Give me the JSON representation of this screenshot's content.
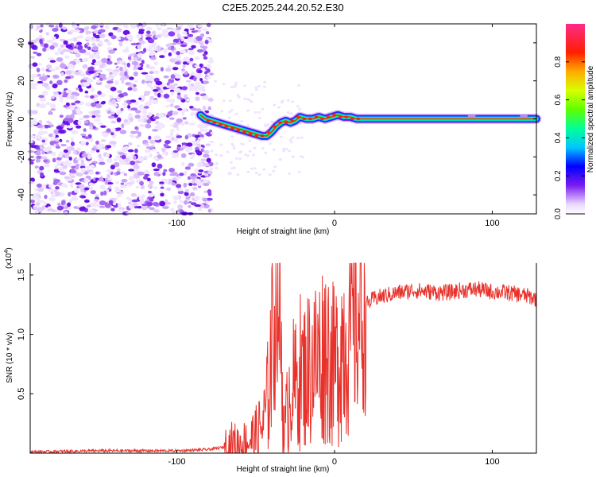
{
  "title": "C2E5.2025.244.20.52.E30",
  "chart_data": [
    {
      "type": "heatmap",
      "xlabel": "Height of straight line (km)",
      "ylabel": "Frequency (Hz)",
      "xlim": [
        -193,
        128
      ],
      "ylim": [
        -50,
        50
      ],
      "xticks": [
        -100,
        0,
        100
      ],
      "xtick_labels": [
        "-100",
        "0",
        "100"
      ],
      "yticks": [
        -40,
        -20,
        0,
        20,
        40
      ],
      "ytick_labels": [
        "-40",
        "-20",
        "0",
        "20",
        "40"
      ],
      "noise_region_km": [
        -193,
        -78
      ],
      "trace_x": [
        -85,
        -82,
        -78,
        -74,
        -70,
        -66,
        -62,
        -58,
        -54,
        -50,
        -46,
        -43,
        -40,
        -37,
        -34,
        -31,
        -28,
        -25,
        -22,
        -18,
        -14,
        -10,
        -6,
        -2,
        2,
        6,
        10,
        14,
        18,
        30,
        60,
        90,
        128
      ],
      "trace_freq": [
        2,
        0,
        -1,
        -2,
        -3,
        -4,
        -5,
        -6,
        -7,
        -8,
        -9,
        -9,
        -7,
        -4,
        -2,
        -1,
        -2,
        -1,
        1,
        0,
        0,
        1,
        0,
        1,
        2,
        1,
        1,
        0,
        0,
        0,
        0,
        0,
        0
      ],
      "colorbar": {
        "label": "Normalized spectral amplitude",
        "range": [
          0,
          1
        ],
        "ticks": [
          0.0,
          0.2,
          0.4,
          0.6,
          0.8
        ],
        "tick_labels": [
          "0.0",
          "0.2",
          "0.4",
          "0.6",
          "0.8"
        ]
      }
    },
    {
      "type": "line",
      "xlabel": "Height of straight line (km)",
      "ylabel": "SNR (10 * v/v)",
      "y_multiplier": "(x10",
      "y_multiplier_exp": "4",
      "y_multiplier_close": ")",
      "xlim": [
        -193,
        128
      ],
      "ylim": [
        0,
        1.6
      ],
      "xticks": [
        -100,
        0,
        100
      ],
      "xtick_labels": [
        "-100",
        "0",
        "100"
      ],
      "yticks": [
        0.5,
        1.0,
        1.5
      ],
      "ytick_labels": [
        "0.5",
        "1.0",
        "1.5"
      ],
      "series": [
        {
          "name": "SNR",
          "color": "#e8312b",
          "x": [
            -193,
            -150,
            -100,
            -80,
            -70,
            -65,
            -60,
            -55,
            -50,
            -45,
            -42,
            -40,
            -38,
            -36,
            -34,
            -32,
            -30,
            -28,
            -25,
            -22,
            -20,
            -15,
            -10,
            -5,
            0,
            5,
            10,
            15,
            20,
            25,
            30,
            40,
            50,
            60,
            70,
            80,
            90,
            100,
            110,
            120,
            128
          ],
          "y": [
            0.01,
            0.02,
            0.02,
            0.03,
            0.05,
            0.08,
            0.07,
            0.1,
            0.15,
            0.25,
            0.5,
            0.9,
            1.2,
            1.55,
            0.95,
            0.15,
            0.35,
            0.6,
            0.55,
            0.7,
            0.65,
            0.75,
            0.8,
            0.9,
            0.7,
            0.95,
            1.05,
            1.15,
            1.25,
            1.3,
            1.32,
            1.35,
            1.37,
            1.36,
            1.35,
            1.37,
            1.38,
            1.36,
            1.35,
            1.33,
            1.3
          ]
        }
      ]
    }
  ]
}
